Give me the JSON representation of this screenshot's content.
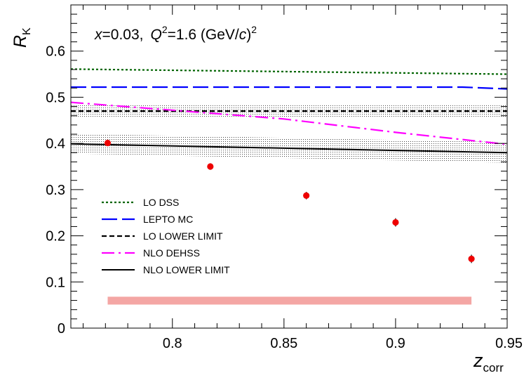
{
  "chart_data": {
    "type": "scatter",
    "annotation": {
      "x_var": "x",
      "x_val": "=0.03,",
      "q_var": "Q",
      "q_exp": "2",
      "q_val": "=1.6 (GeV/",
      "c_var": "c",
      "close": ")",
      "c_exp": "2"
    },
    "ylabel": {
      "main": "R",
      "sub": "K"
    },
    "xlabel": {
      "main": "z",
      "sub": "corr"
    },
    "xlim": [
      0.7545,
      0.95
    ],
    "ylim": [
      0,
      0.7
    ],
    "x_ticks": [
      {
        "value": 0.8,
        "label": "0.8"
      },
      {
        "value": 0.85,
        "label": "0.85"
      },
      {
        "value": 0.9,
        "label": "0.9"
      },
      {
        "value": 0.95,
        "label": "0.95"
      }
    ],
    "y_ticks": [
      {
        "value": 0,
        "label": "0"
      },
      {
        "value": 0.1,
        "label": "0.1"
      },
      {
        "value": 0.2,
        "label": "0.2"
      },
      {
        "value": 0.3,
        "label": "0.3"
      },
      {
        "value": 0.4,
        "label": "0.4"
      },
      {
        "value": 0.5,
        "label": "0.5"
      },
      {
        "value": 0.6,
        "label": "0.6"
      }
    ],
    "data_points": [
      {
        "z": 0.771,
        "r": 0.401,
        "err": 0.007
      },
      {
        "z": 0.817,
        "r": 0.35,
        "err": 0.007
      },
      {
        "z": 0.86,
        "r": 0.287,
        "err": 0.008
      },
      {
        "z": 0.9,
        "r": 0.229,
        "err": 0.009
      },
      {
        "z": 0.934,
        "r": 0.15,
        "err": 0.009
      }
    ],
    "systematic_band": {
      "x": [
        0.771,
        0.934
      ],
      "center": 0.0595,
      "half_width": 0.0085,
      "color": "#f4a6a4"
    },
    "curves": [
      {
        "name": "LO DSS",
        "color": "#006400",
        "style": "dot",
        "x": [
          0.7545,
          0.95
        ],
        "y": [
          0.561,
          0.55
        ]
      },
      {
        "name": "LEPTO MC",
        "color": "#0000ff",
        "style": "longdash",
        "x": [
          0.7545,
          0.8,
          0.85,
          0.9,
          0.93,
          0.95
        ],
        "y": [
          0.522,
          0.522,
          0.522,
          0.522,
          0.522,
          0.518
        ]
      },
      {
        "name": "LO LOWER LIMIT",
        "color": "#000000",
        "style": "dash",
        "x": [
          0.7545,
          0.95
        ],
        "y": [
          0.47,
          0.47
        ],
        "band": [
          0.456,
          0.484
        ]
      },
      {
        "name": "NLO DEHSS",
        "color": "#ff00ff",
        "style": "dashdot",
        "x": [
          0.7545,
          0.8,
          0.85,
          0.9,
          0.95
        ],
        "y": [
          0.489,
          0.472,
          0.453,
          0.424,
          0.398
        ]
      },
      {
        "name": "NLO LOWER LIMIT",
        "color": "#000000",
        "style": "solid",
        "x": [
          0.7545,
          0.95
        ],
        "y": [
          0.399,
          0.38
        ],
        "band": [
          [
            0.7545,
            0.95
          ],
          [
            0.378,
            0.358
          ],
          [
            0.421,
            0.403
          ]
        ]
      }
    ],
    "marker_color": "#ee0000",
    "legend_position": "middle-left"
  }
}
